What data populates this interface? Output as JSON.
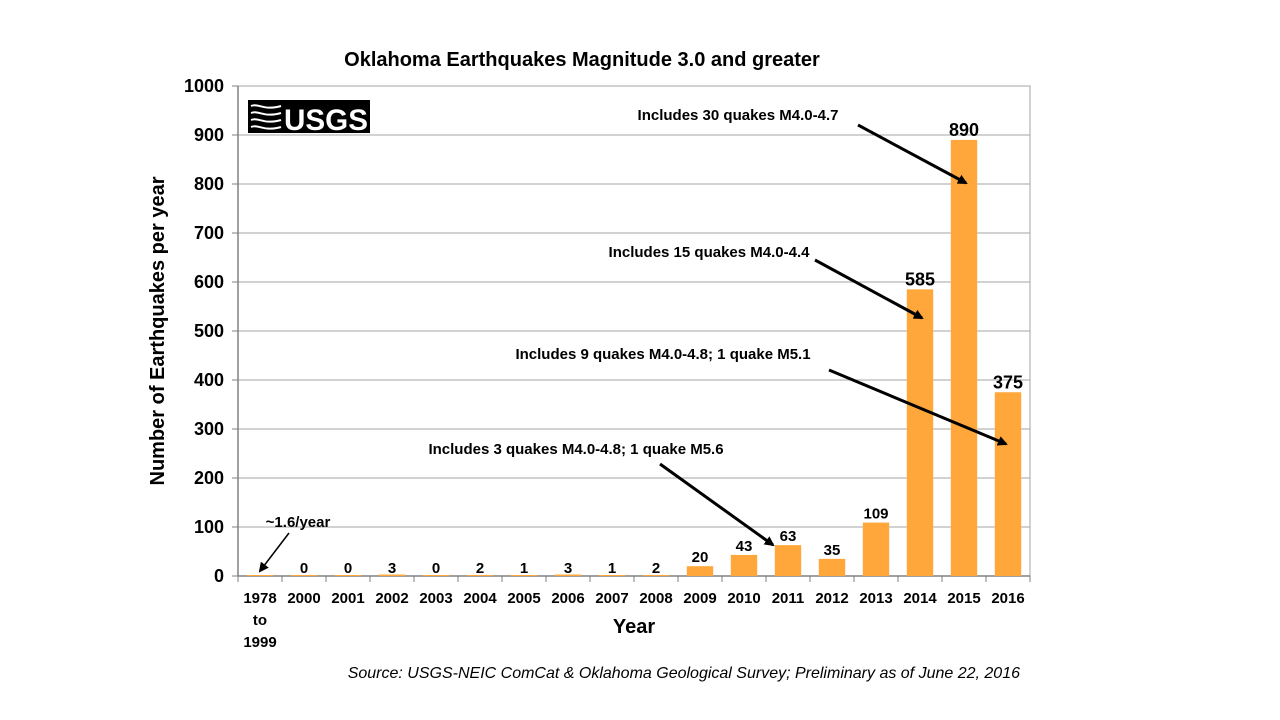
{
  "chart_data": {
    "type": "bar",
    "title": "Oklahoma Earthquakes Magnitude 3.0 and greater",
    "xlabel": "Year",
    "ylabel": "Number of Earthquakes per year",
    "ylim": [
      0,
      1000
    ],
    "yticks": [
      "0",
      "100",
      "200",
      "300",
      "400",
      "500",
      "600",
      "700",
      "800",
      "900",
      "1000"
    ],
    "grid": true,
    "bar_color": "#FFA73B",
    "categories": [
      [
        "1978",
        "to",
        "1999"
      ],
      [
        "2000"
      ],
      [
        "2001"
      ],
      [
        "2002"
      ],
      [
        "2003"
      ],
      [
        "2004"
      ],
      [
        "2005"
      ],
      [
        "2006"
      ],
      [
        "2007"
      ],
      [
        "2008"
      ],
      [
        "2009"
      ],
      [
        "2010"
      ],
      [
        "2011"
      ],
      [
        "2012"
      ],
      [
        "2013"
      ],
      [
        "2014"
      ],
      [
        "2015"
      ],
      [
        "2016"
      ]
    ],
    "values": [
      1.6,
      0,
      0,
      3,
      0,
      2,
      1,
      3,
      1,
      2,
      20,
      43,
      63,
      35,
      109,
      585,
      890,
      375
    ],
    "data_labels": [
      "",
      "0",
      "0",
      "3",
      "0",
      "2",
      "1",
      "3",
      "1",
      "2",
      "20",
      "43",
      "63",
      "35",
      "109",
      "585",
      "890",
      "375"
    ],
    "annotations": [
      {
        "text": "~1.6/year",
        "category_index": 0
      },
      {
        "text": "Includes 3 quakes M4.0-4.8; 1 quake M5.6",
        "category_index": 12
      },
      {
        "text": "Includes 9 quakes M4.0-4.8; 1 quake M5.1",
        "category_index": 17
      },
      {
        "text": "Includes 15 quakes M4.0-4.4",
        "category_index": 15
      },
      {
        "text": "Includes 30 quakes M4.0-4.7",
        "category_index": 16
      }
    ],
    "logo": "USGS",
    "source": "Source: USGS-NEIC ComCat & Oklahoma Geological Survey; Preliminary as of June 22, 2016"
  }
}
